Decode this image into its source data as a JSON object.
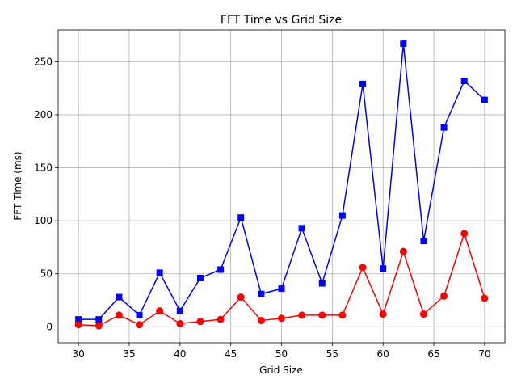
{
  "chart_data": {
    "type": "line",
    "title": "FFT Time vs Grid Size",
    "xlabel": "Grid Size",
    "ylabel": "FFT Time (ms)",
    "xlim": [
      28,
      72
    ],
    "ylim": [
      -15,
      280
    ],
    "xticks": [
      30,
      35,
      40,
      45,
      50,
      55,
      60,
      65,
      70
    ],
    "yticks": [
      0,
      50,
      100,
      150,
      200,
      250
    ],
    "grid": true,
    "x": [
      30,
      32,
      34,
      36,
      38,
      40,
      42,
      44,
      46,
      48,
      50,
      52,
      54,
      56,
      58,
      60,
      62,
      64,
      66,
      68,
      70
    ],
    "series": [
      {
        "color": "#0000ff",
        "marker": "square",
        "values": [
          7,
          7,
          28,
          11,
          51,
          15,
          46,
          54,
          103,
          31,
          36,
          93,
          41,
          105,
          229,
          55,
          267,
          81,
          188,
          232,
          214
        ]
      },
      {
        "color": "#ff0000",
        "marker": "circle",
        "values": [
          2,
          1,
          11,
          2,
          15,
          3,
          5,
          7,
          28,
          6,
          8,
          11,
          11,
          11,
          56,
          12,
          71,
          12,
          29,
          88,
          27
        ]
      }
    ]
  }
}
